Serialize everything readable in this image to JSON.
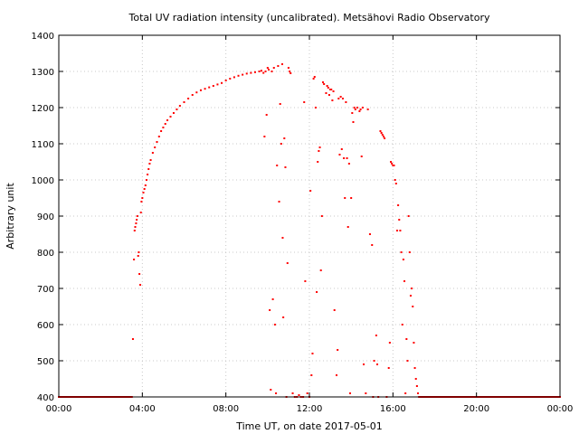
{
  "chart_data": {
    "type": "scatter",
    "title": "Total UV radiation intensity (uncalibrated). Metsähovi Radio Observatory",
    "xlabel": "Time UT, on date 2017-05-01",
    "ylabel": "Arbitrary unit",
    "x_unit": "hours UT",
    "xlim": [
      0,
      24
    ],
    "ylim": [
      400,
      1400
    ],
    "x_ticks": [
      {
        "value": 0,
        "label": "00:00"
      },
      {
        "value": 4,
        "label": "04:00"
      },
      {
        "value": 8,
        "label": "08:00"
      },
      {
        "value": 12,
        "label": "12:00"
      },
      {
        "value": 16,
        "label": "16:00"
      },
      {
        "value": 20,
        "label": "20:00"
      },
      {
        "value": 24,
        "label": "00:00"
      }
    ],
    "y_ticks": [
      400,
      500,
      600,
      700,
      800,
      900,
      1000,
      1100,
      1200,
      1300,
      1400
    ],
    "grid": true,
    "marker_color": "#ff0000",
    "series": [
      {
        "points": [
          [
            0.0,
            400
          ],
          [
            0.5,
            400
          ],
          [
            1.0,
            400
          ],
          [
            1.5,
            400
          ],
          [
            2.0,
            400
          ],
          [
            2.5,
            400
          ],
          [
            3.0,
            400
          ],
          [
            3.5,
            400
          ],
          [
            3.55,
            560
          ],
          [
            3.6,
            780
          ],
          [
            3.63,
            860
          ],
          [
            3.66,
            870
          ],
          [
            3.7,
            880
          ],
          [
            3.73,
            890
          ],
          [
            3.76,
            900
          ],
          [
            3.8,
            790
          ],
          [
            3.83,
            800
          ],
          [
            3.86,
            740
          ],
          [
            3.9,
            710
          ],
          [
            3.93,
            910
          ],
          [
            3.96,
            940
          ],
          [
            4.0,
            950
          ],
          [
            4.05,
            965
          ],
          [
            4.1,
            975
          ],
          [
            4.15,
            985
          ],
          [
            4.2,
            1000
          ],
          [
            4.25,
            1015
          ],
          [
            4.3,
            1030
          ],
          [
            4.35,
            1045
          ],
          [
            4.4,
            1055
          ],
          [
            4.5,
            1075
          ],
          [
            4.6,
            1090
          ],
          [
            4.7,
            1105
          ],
          [
            4.8,
            1120
          ],
          [
            4.9,
            1135
          ],
          [
            5.0,
            1145
          ],
          [
            5.1,
            1155
          ],
          [
            5.2,
            1165
          ],
          [
            5.35,
            1175
          ],
          [
            5.5,
            1185
          ],
          [
            5.65,
            1195
          ],
          [
            5.8,
            1205
          ],
          [
            6.0,
            1215
          ],
          [
            6.2,
            1225
          ],
          [
            6.4,
            1235
          ],
          [
            6.6,
            1242
          ],
          [
            6.8,
            1248
          ],
          [
            7.0,
            1252
          ],
          [
            7.2,
            1256
          ],
          [
            7.4,
            1260
          ],
          [
            7.6,
            1264
          ],
          [
            7.8,
            1268
          ],
          [
            8.0,
            1275
          ],
          [
            8.2,
            1280
          ],
          [
            8.4,
            1284
          ],
          [
            8.6,
            1288
          ],
          [
            8.8,
            1291
          ],
          [
            9.0,
            1294
          ],
          [
            9.2,
            1296
          ],
          [
            9.4,
            1298
          ],
          [
            9.6,
            1300
          ],
          [
            9.7,
            1302
          ],
          [
            9.8,
            1296
          ],
          [
            9.85,
            1120
          ],
          [
            9.9,
            1300
          ],
          [
            9.95,
            1180
          ],
          [
            10.0,
            1310
          ],
          [
            10.05,
            1305
          ],
          [
            10.1,
            640
          ],
          [
            10.15,
            420
          ],
          [
            10.2,
            1300
          ],
          [
            10.25,
            670
          ],
          [
            10.3,
            1310
          ],
          [
            10.35,
            600
          ],
          [
            10.4,
            410
          ],
          [
            10.45,
            1040
          ],
          [
            10.5,
            1315
          ],
          [
            10.55,
            940
          ],
          [
            10.6,
            1210
          ],
          [
            10.65,
            1100
          ],
          [
            10.7,
            1320
          ],
          [
            10.72,
            840
          ],
          [
            10.75,
            620
          ],
          [
            10.8,
            1115
          ],
          [
            10.85,
            1035
          ],
          [
            10.9,
            400
          ],
          [
            10.95,
            770
          ],
          [
            11.0,
            1310
          ],
          [
            11.05,
            1300
          ],
          [
            11.1,
            1295
          ],
          [
            11.2,
            410
          ],
          [
            11.3,
            400
          ],
          [
            11.4,
            400
          ],
          [
            11.5,
            405
          ],
          [
            11.6,
            400
          ],
          [
            11.7,
            400
          ],
          [
            11.75,
            1215
          ],
          [
            11.8,
            720
          ],
          [
            11.9,
            410
          ],
          [
            12.0,
            400
          ],
          [
            12.05,
            970
          ],
          [
            12.1,
            460
          ],
          [
            12.15,
            520
          ],
          [
            12.2,
            1280
          ],
          [
            12.25,
            1285
          ],
          [
            12.3,
            1200
          ],
          [
            12.35,
            690
          ],
          [
            12.4,
            1050
          ],
          [
            12.45,
            1080
          ],
          [
            12.5,
            1090
          ],
          [
            12.55,
            750
          ],
          [
            12.6,
            900
          ],
          [
            12.65,
            1270
          ],
          [
            12.7,
            1265
          ],
          [
            12.8,
            1240
          ],
          [
            12.85,
            1260
          ],
          [
            12.9,
            1255
          ],
          [
            12.95,
            1235
          ],
          [
            13.0,
            1250
          ],
          [
            13.05,
            1250
          ],
          [
            13.1,
            1220
          ],
          [
            13.15,
            1245
          ],
          [
            13.2,
            640
          ],
          [
            13.3,
            460
          ],
          [
            13.35,
            530
          ],
          [
            13.4,
            1225
          ],
          [
            13.45,
            1070
          ],
          [
            13.5,
            1230
          ],
          [
            13.55,
            1085
          ],
          [
            13.6,
            1225
          ],
          [
            13.65,
            1060
          ],
          [
            13.7,
            950
          ],
          [
            13.75,
            1215
          ],
          [
            13.8,
            1060
          ],
          [
            13.85,
            870
          ],
          [
            13.9,
            1045
          ],
          [
            13.95,
            410
          ],
          [
            14.0,
            950
          ],
          [
            14.05,
            1185
          ],
          [
            14.1,
            1160
          ],
          [
            14.15,
            1200
          ],
          [
            14.2,
            1195
          ],
          [
            14.3,
            1200
          ],
          [
            14.4,
            1190
          ],
          [
            14.45,
            1195
          ],
          [
            14.5,
            1065
          ],
          [
            14.55,
            1200
          ],
          [
            14.6,
            490
          ],
          [
            14.7,
            410
          ],
          [
            14.8,
            1195
          ],
          [
            14.9,
            850
          ],
          [
            15.0,
            820
          ],
          [
            15.05,
            400
          ],
          [
            15.1,
            500
          ],
          [
            15.2,
            570
          ],
          [
            15.25,
            490
          ],
          [
            15.3,
            400
          ],
          [
            15.4,
            1135
          ],
          [
            15.45,
            1130
          ],
          [
            15.5,
            1125
          ],
          [
            15.55,
            1120
          ],
          [
            15.6,
            1115
          ],
          [
            15.7,
            400
          ],
          [
            15.8,
            480
          ],
          [
            15.85,
            550
          ],
          [
            15.9,
            1050
          ],
          [
            15.95,
            1045
          ],
          [
            16.0,
            1040
          ],
          [
            16.05,
            1040
          ],
          [
            16.1,
            1000
          ],
          [
            16.15,
            990
          ],
          [
            16.2,
            860
          ],
          [
            16.25,
            930
          ],
          [
            16.3,
            890
          ],
          [
            16.35,
            860
          ],
          [
            16.4,
            800
          ],
          [
            16.45,
            600
          ],
          [
            16.5,
            780
          ],
          [
            16.55,
            720
          ],
          [
            16.6,
            410
          ],
          [
            16.65,
            560
          ],
          [
            16.7,
            500
          ],
          [
            16.75,
            900
          ],
          [
            16.8,
            800
          ],
          [
            16.85,
            680
          ],
          [
            16.9,
            700
          ],
          [
            16.95,
            650
          ],
          [
            17.0,
            550
          ],
          [
            17.05,
            480
          ],
          [
            17.1,
            450
          ],
          [
            17.15,
            430
          ],
          [
            17.2,
            410
          ],
          [
            17.25,
            400
          ],
          [
            17.5,
            400
          ],
          [
            18.0,
            400
          ],
          [
            18.5,
            400
          ],
          [
            19.0,
            400
          ],
          [
            19.5,
            400
          ],
          [
            20.0,
            400
          ],
          [
            20.5,
            400
          ],
          [
            21.0,
            400
          ],
          [
            21.5,
            400
          ],
          [
            22.0,
            400
          ],
          [
            22.5,
            400
          ],
          [
            23.0,
            400
          ],
          [
            23.5,
            400
          ],
          [
            24.0,
            400
          ]
        ]
      }
    ]
  }
}
